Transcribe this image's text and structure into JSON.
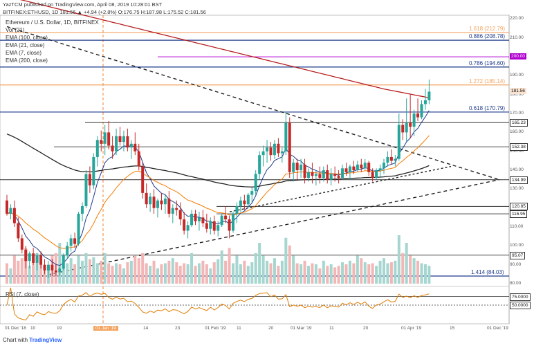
{
  "header": {
    "published": "YazTCM published on TradingView.com, April 08, 2019 10:28:01 BST",
    "quote": "BITFINEX:ETHUSD, 1D 181.56 ▲ +4.94 (+2.8%) O:176.75 H:187.98 L:175.52 C:181.56"
  },
  "legend": {
    "title": "Ethereum / U.S. Dollar, 1D, BITFINEX",
    "indicators": [
      "Vol (21)",
      "EMA (100, close)",
      "EMA (21, close)",
      "EMA (7, close)",
      "EMA (200, close)"
    ]
  },
  "footer": {
    "prefix": "Chart with",
    "brand": "TradingView"
  },
  "colors": {
    "up": "#26a69a",
    "down": "#c62828",
    "ema200": "#b71c1c",
    "ema100": "#212121",
    "ema21": "#f57c00",
    "ema7": "#1e3a8a",
    "fib_line": "#1e3a8a",
    "fib_orange": "#f4a460",
    "purple": "#b000d0",
    "rsi": "#e07b00"
  },
  "chart_data": {
    "type": "candlestick",
    "title": "Ethereum / U.S. Dollar, 1D, BITFINEX",
    "symbol": "BITFINEX:ETHUSD",
    "last_price": 181.56,
    "ylim": [
      80,
      222
    ],
    "y_ticks": [
      80,
      90,
      100,
      110,
      120,
      130,
      140,
      150,
      160,
      170,
      180,
      190,
      200,
      210,
      220
    ],
    "x_ticks": [
      "01 Dec '18",
      "10",
      "19",
      "01 Jan '19",
      "14",
      "23",
      "01 Feb '19",
      "11",
      "20",
      "01 Mar '19",
      "11",
      "20",
      "01 Apr '19",
      "15",
      "01 Dec '19"
    ],
    "highlight_date": "01 Jan '19",
    "horizontal_levels": [
      {
        "label": "1.618 (212.79)",
        "value": 212.79,
        "kind": "fib"
      },
      {
        "label": "0.886 (208.78)",
        "value": 208.78,
        "kind": "fib"
      },
      {
        "label": "0.786 (194.60)",
        "value": 194.6,
        "kind": "fib"
      },
      {
        "label": "1.272 (185.14)",
        "value": 185.14,
        "kind": "fib"
      },
      {
        "label": "0.618 (170.79)",
        "value": 170.79,
        "kind": "fib"
      },
      {
        "label": "1.414 (84.03)",
        "value": 84.03,
        "kind": "fib"
      },
      {
        "label": "200.00",
        "value": 200.0,
        "kind": "purple"
      },
      {
        "label": "165.23",
        "value": 165.23,
        "kind": "level"
      },
      {
        "label": "152.38",
        "value": 152.38,
        "kind": "level"
      },
      {
        "label": "134.99",
        "value": 134.99,
        "kind": "level"
      },
      {
        "label": "120.85",
        "value": 120.85,
        "kind": "level"
      },
      {
        "label": "116.95",
        "value": 116.95,
        "kind": "level"
      },
      {
        "label": "95.07",
        "value": 95.07,
        "kind": "level"
      }
    ],
    "ohlc": [
      [
        124,
        127,
        116,
        117
      ],
      [
        117,
        122,
        114,
        120
      ],
      [
        120,
        124,
        110,
        112
      ],
      [
        112,
        115,
        102,
        104
      ],
      [
        104,
        106,
        96,
        98
      ],
      [
        98,
        100,
        88,
        92
      ],
      [
        92,
        97,
        88,
        96
      ],
      [
        96,
        99,
        90,
        91
      ],
      [
        91,
        96,
        87,
        95
      ],
      [
        95,
        97,
        88,
        90
      ],
      [
        90,
        93,
        85,
        87
      ],
      [
        87,
        92,
        83,
        90
      ],
      [
        90,
        93,
        84,
        87
      ],
      [
        87,
        90,
        84,
        86
      ],
      [
        86,
        89,
        84,
        88
      ],
      [
        88,
        96,
        87,
        95
      ],
      [
        95,
        102,
        93,
        100
      ],
      [
        100,
        106,
        97,
        104
      ],
      [
        104,
        107,
        99,
        101
      ],
      [
        101,
        118,
        100,
        117
      ],
      [
        117,
        123,
        113,
        121
      ],
      [
        121,
        140,
        120,
        138
      ],
      [
        138,
        142,
        128,
        132
      ],
      [
        132,
        149,
        130,
        147
      ],
      [
        147,
        158,
        142,
        156
      ],
      [
        156,
        161,
        150,
        154
      ],
      [
        154,
        164,
        148,
        160
      ],
      [
        160,
        166,
        151,
        153
      ],
      [
        153,
        158,
        146,
        150
      ],
      [
        150,
        162,
        148,
        158
      ],
      [
        158,
        163,
        153,
        155
      ],
      [
        155,
        161,
        150,
        158
      ],
      [
        158,
        162,
        150,
        152
      ],
      [
        152,
        156,
        146,
        154
      ],
      [
        154,
        160,
        148,
        150
      ],
      [
        150,
        154,
        140,
        142
      ],
      [
        142,
        144,
        125,
        128
      ],
      [
        128,
        133,
        120,
        122
      ],
      [
        122,
        128,
        118,
        126
      ],
      [
        126,
        130,
        117,
        120
      ],
      [
        120,
        125,
        115,
        124
      ],
      [
        124,
        128,
        119,
        122
      ],
      [
        122,
        127,
        117,
        125
      ],
      [
        125,
        129,
        115,
        117
      ],
      [
        117,
        122,
        112,
        120
      ],
      [
        120,
        124,
        116,
        119
      ],
      [
        119,
        123,
        111,
        114
      ],
      [
        114,
        118,
        106,
        108
      ],
      [
        108,
        113,
        104,
        111
      ],
      [
        111,
        119,
        110,
        117
      ],
      [
        117,
        119,
        111,
        113
      ],
      [
        113,
        118,
        108,
        115
      ],
      [
        115,
        119,
        110,
        112
      ],
      [
        112,
        117,
        107,
        109
      ],
      [
        109,
        115,
        106,
        113
      ],
      [
        113,
        116,
        106,
        108
      ],
      [
        108,
        113,
        105,
        111
      ],
      [
        111,
        117,
        110,
        116
      ],
      [
        116,
        121,
        112,
        114
      ],
      [
        114,
        116,
        104,
        108
      ],
      [
        108,
        118,
        107,
        117
      ],
      [
        117,
        123,
        112,
        121
      ],
      [
        121,
        126,
        118,
        124
      ],
      [
        124,
        127,
        119,
        122
      ],
      [
        122,
        128,
        120,
        127
      ],
      [
        127,
        131,
        123,
        129
      ],
      [
        129,
        140,
        127,
        138
      ],
      [
        138,
        150,
        135,
        148
      ],
      [
        148,
        153,
        142,
        150
      ],
      [
        150,
        156,
        144,
        152
      ],
      [
        152,
        155,
        145,
        148
      ],
      [
        148,
        156,
        146,
        154
      ],
      [
        154,
        157,
        147,
        149
      ],
      [
        149,
        152,
        144,
        150
      ],
      [
        150,
        171,
        148,
        165
      ],
      [
        165,
        168,
        136,
        139
      ],
      [
        139,
        146,
        134,
        144
      ],
      [
        144,
        146,
        135,
        140
      ],
      [
        140,
        146,
        136,
        143
      ],
      [
        143,
        146,
        133,
        136
      ],
      [
        136,
        141,
        134,
        139
      ],
      [
        139,
        144,
        133,
        137
      ],
      [
        137,
        140,
        132,
        138
      ],
      [
        138,
        142,
        133,
        136
      ],
      [
        136,
        142,
        134,
        140
      ],
      [
        140,
        143,
        133,
        135
      ],
      [
        135,
        141,
        132,
        138
      ],
      [
        138,
        142,
        134,
        137
      ],
      [
        137,
        140,
        133,
        136
      ],
      [
        136,
        143,
        135,
        141
      ],
      [
        141,
        144,
        137,
        139
      ],
      [
        139,
        143,
        135,
        142
      ],
      [
        142,
        145,
        138,
        140
      ],
      [
        140,
        145,
        139,
        143
      ],
      [
        143,
        146,
        139,
        141
      ],
      [
        141,
        146,
        140,
        144
      ],
      [
        144,
        145,
        137,
        139
      ],
      [
        139,
        141,
        134,
        136
      ],
      [
        136,
        141,
        135,
        140
      ],
      [
        140,
        143,
        136,
        141
      ],
      [
        141,
        146,
        138,
        144
      ],
      [
        144,
        150,
        142,
        147
      ],
      [
        147,
        151,
        143,
        145
      ],
      [
        145,
        148,
        142,
        146
      ],
      [
        146,
        170,
        145,
        164
      ],
      [
        164,
        167,
        156,
        160
      ],
      [
        160,
        178,
        155,
        165
      ],
      [
        165,
        180,
        157,
        163
      ],
      [
        163,
        172,
        158,
        170
      ],
      [
        170,
        178,
        166,
        168
      ],
      [
        168,
        177,
        167,
        175
      ],
      [
        175,
        183,
        172,
        177
      ],
      [
        177,
        188,
        175,
        181.56
      ]
    ],
    "volume_note": "volume shown as relative bar heights",
    "volume": [
      40,
      30,
      55,
      45,
      50,
      70,
      35,
      40,
      60,
      45,
      35,
      30,
      55,
      60,
      80,
      35,
      40,
      50,
      38,
      55,
      45,
      60,
      48,
      52,
      40,
      45,
      60,
      40,
      35,
      40,
      38,
      30,
      42,
      45,
      55,
      50,
      60,
      40,
      35,
      45,
      30,
      38,
      40,
      45,
      50,
      42,
      35,
      40,
      38,
      60,
      35,
      40,
      45,
      38,
      30,
      42,
      48,
      65,
      45,
      70,
      40,
      55,
      38,
      45,
      35,
      42,
      60,
      80,
      55,
      45,
      40,
      50,
      35,
      45,
      90,
      75,
      55,
      40,
      38,
      45,
      35,
      40,
      38,
      30,
      45,
      35,
      38,
      32,
      35,
      42,
      38,
      45,
      40,
      55,
      50,
      42,
      38,
      40,
      35,
      45,
      50,
      40,
      42,
      45,
      95,
      60,
      80,
      55,
      50,
      45,
      40,
      38,
      35
    ],
    "rsi": {
      "label": "RSI (7, close)",
      "ylim": [
        0,
        100
      ],
      "levels": [
        75,
        50
      ],
      "level_labels": [
        "75.0000",
        "50.0000"
      ]
    }
  }
}
